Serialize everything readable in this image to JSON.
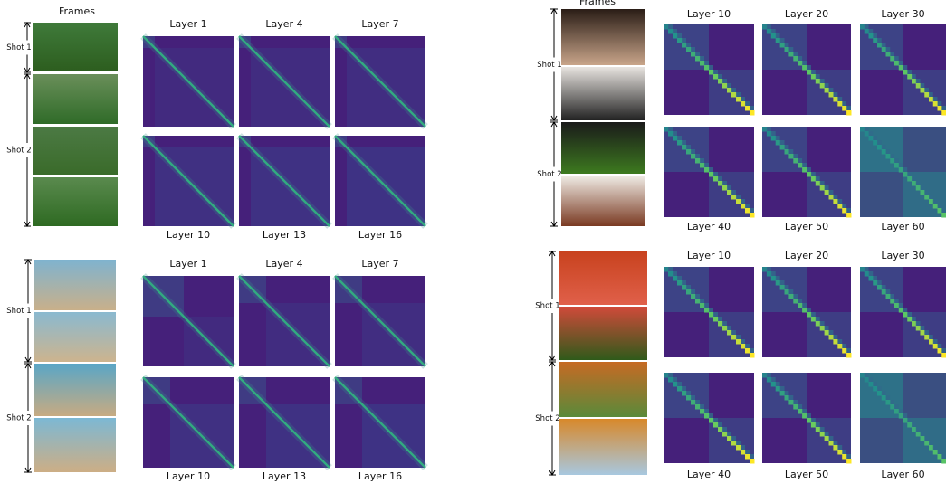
{
  "panels": [
    {
      "frames_title": "Frames",
      "shots": [
        "Shot 1",
        "Shot 2"
      ],
      "layers": [
        "Layer 1",
        "Layer 4",
        "Layer 7",
        "Layer 10",
        "Layer 13",
        "Layer 16"
      ]
    },
    {
      "shots": [
        "Shot 1",
        "Shot 2"
      ],
      "layers": [
        "Layer 1",
        "Layer 4",
        "Layer 7",
        "Layer 10",
        "Layer 13",
        "Layer 16"
      ]
    },
    {
      "frames_title": "Frames",
      "shots": [
        "Shot 1",
        "Shot 2"
      ],
      "layers": [
        "Layer 10",
        "Layer 20",
        "Layer 30",
        "Layer 40",
        "Layer 50",
        "Layer 60"
      ]
    },
    {
      "shots": [
        "Shot 1",
        "Shot 2"
      ],
      "layers": [
        "Layer 10",
        "Layer 20",
        "Layer 30",
        "Layer 40",
        "Layer 50",
        "Layer 60"
      ]
    }
  ]
}
